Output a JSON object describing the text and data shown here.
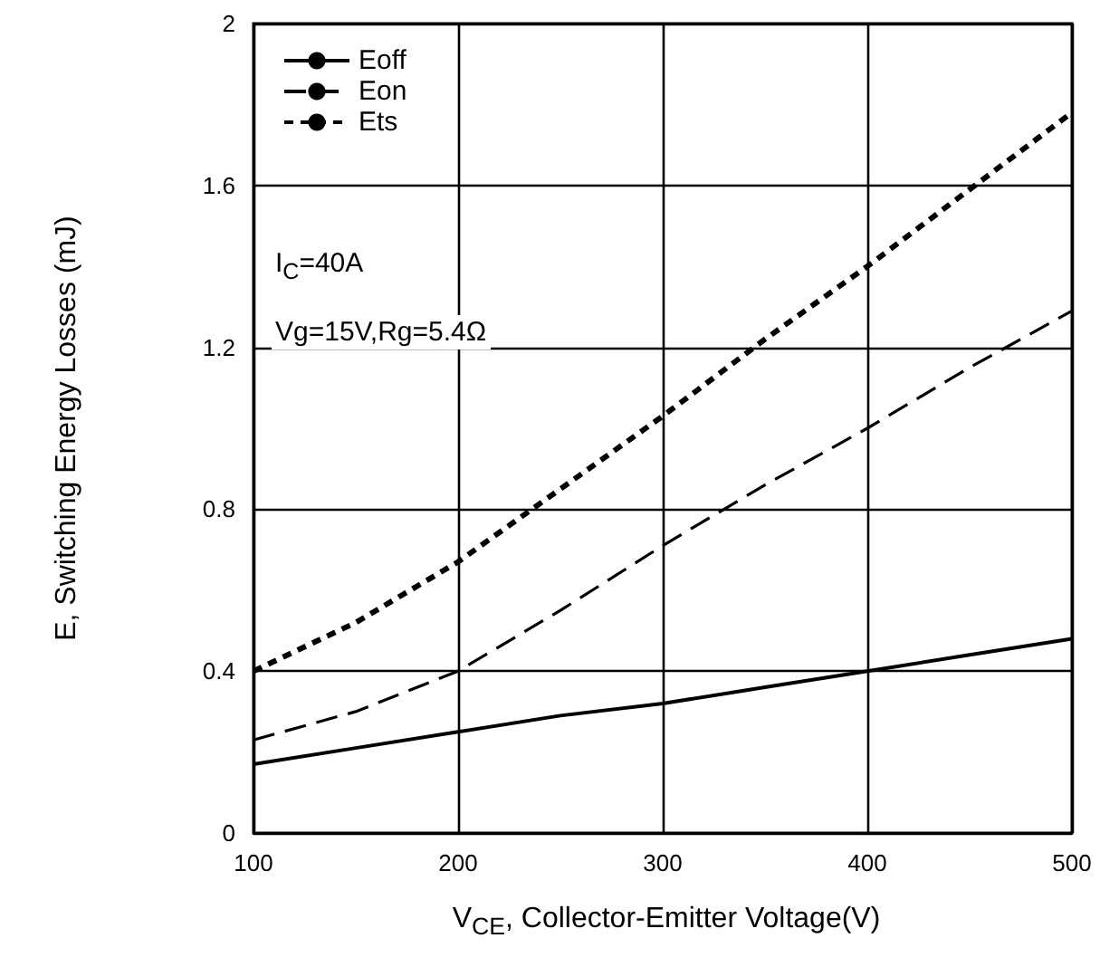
{
  "chart_data": {
    "type": "line",
    "xlabel": "V$_{CE}$, Collector-Emitter Voltage(V)",
    "ylabel": "E, Switching Energy Losses (mJ)",
    "x": [
      100,
      150,
      200,
      250,
      300,
      350,
      400,
      450,
      500
    ],
    "series": [
      {
        "name": "Eoff",
        "color": "#000000",
        "line_style": "solid",
        "values": [
          0.17,
          0.21,
          0.25,
          0.29,
          0.32,
          0.36,
          0.4,
          0.44,
          0.48
        ]
      },
      {
        "name": "Eon",
        "color": "#000000",
        "line_style": "dashed",
        "values": [
          0.23,
          0.3,
          0.4,
          0.55,
          0.71,
          0.86,
          1.0,
          1.15,
          1.29
        ]
      },
      {
        "name": "Ets",
        "color": "#000000",
        "line_style": "dotted",
        "values": [
          0.4,
          0.52,
          0.67,
          0.85,
          1.03,
          1.22,
          1.4,
          1.59,
          1.78
        ]
      }
    ],
    "xlim": [
      100,
      500
    ],
    "xticks": [
      100,
      200,
      300,
      400,
      500
    ],
    "ylim": [
      0,
      2
    ],
    "yticks": [
      0,
      0.4,
      0.8,
      1.2,
      1.6,
      2
    ],
    "grid": true,
    "legend": "top left",
    "marker": "none",
    "annotations": [
      "I$_{C}$=40A",
      "Vg=15V,Rg=5.4Ω"
    ]
  }
}
